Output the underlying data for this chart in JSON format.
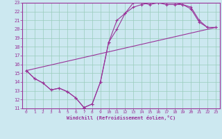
{
  "bg_color": "#cce8f0",
  "line_color": "#993399",
  "grid_color": "#99ccbb",
  "xlabel": "Windchill (Refroidissement éolien,°C)",
  "xlabel_color": "#993399",
  "xtick_color": "#993399",
  "ytick_color": "#993399",
  "xlim": [
    -0.5,
    23.5
  ],
  "ylim": [
    11,
    23
  ],
  "xticks": [
    0,
    1,
    2,
    3,
    4,
    5,
    6,
    7,
    8,
    9,
    10,
    11,
    12,
    13,
    14,
    15,
    16,
    17,
    18,
    19,
    20,
    21,
    22,
    23
  ],
  "yticks": [
    11,
    12,
    13,
    14,
    15,
    16,
    17,
    18,
    19,
    20,
    21,
    22,
    23
  ],
  "line1_x": [
    0,
    1,
    2,
    3,
    4,
    5,
    6,
    7,
    8,
    9,
    10,
    11,
    12,
    13,
    14,
    15,
    16,
    17,
    18,
    19,
    20,
    21,
    22,
    23
  ],
  "line1_y": [
    15.3,
    14.4,
    13.9,
    13.1,
    13.3,
    12.9,
    12.2,
    11.1,
    11.5,
    14.0,
    18.5,
    21.0,
    21.8,
    23.0,
    23.0,
    22.8,
    23.0,
    23.0,
    23.0,
    22.8,
    22.5,
    21.0,
    20.2,
    20.2
  ],
  "line2_x": [
    0,
    1,
    2,
    3,
    4,
    5,
    6,
    7,
    8,
    9,
    10,
    11,
    12,
    13,
    14,
    15,
    16,
    17,
    18,
    19,
    20,
    21,
    22,
    23
  ],
  "line2_y": [
    15.3,
    14.4,
    13.9,
    13.1,
    13.3,
    12.9,
    12.2,
    11.1,
    11.5,
    14.0,
    18.5,
    20.0,
    21.8,
    22.5,
    22.8,
    23.0,
    23.0,
    22.8,
    22.8,
    22.8,
    22.3,
    20.8,
    20.2,
    20.2
  ],
  "line3_x": [
    0,
    23
  ],
  "line3_y": [
    15.3,
    20.2
  ]
}
